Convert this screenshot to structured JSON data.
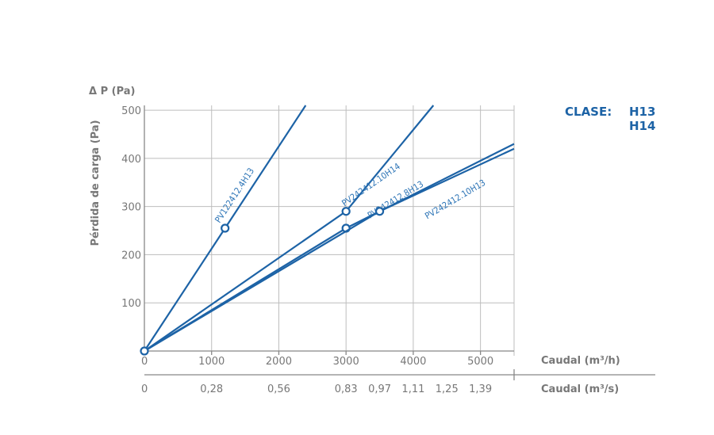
{
  "chart_data": {
    "type": "line",
    "ylabel_symbol": "Δ P (Pa)",
    "ylabel": "Pérdida de carga (Pa)",
    "xlabel_primary": "Caudal (m³/h)",
    "xlabel_secondary": "Caudal (m³/s)",
    "xlim": [
      0,
      5500
    ],
    "ylim": [
      0,
      510
    ],
    "x_ticks_primary": [
      "0",
      "1000",
      "2000",
      "3000",
      "4000",
      "5000"
    ],
    "y_ticks": [
      "100",
      "200",
      "300",
      "400",
      "500"
    ],
    "x_ticks_secondary": [
      {
        "value": 0,
        "label": "0"
      },
      {
        "value": 1000,
        "label": "0,28"
      },
      {
        "value": 2000,
        "label": "0,56"
      },
      {
        "value": 3000,
        "label": "0,83"
      },
      {
        "value": 3500,
        "label": "0,97"
      },
      {
        "value": 4000,
        "label": "1,11"
      },
      {
        "value": 4500,
        "label": "1,25"
      },
      {
        "value": 5000,
        "label": "1,39"
      }
    ],
    "grid": true,
    "legend": {
      "title": "CLASE:",
      "items": [
        "H13",
        "H14"
      ]
    },
    "series": [
      {
        "name": "PV122412.4H13",
        "x": [
          0,
          1200,
          2400
        ],
        "y": [
          0,
          255,
          510
        ],
        "marker": {
          "x": 1200,
          "y": 255
        }
      },
      {
        "name": "PV242412.10H14",
        "x": [
          0,
          3000,
          4300
        ],
        "y": [
          0,
          290,
          510
        ],
        "marker": {
          "x": 3000,
          "y": 290
        }
      },
      {
        "name": "PV242412.8H13",
        "x": [
          0,
          3000,
          5500
        ],
        "y": [
          0,
          255,
          430
        ],
        "marker": {
          "x": 3000,
          "y": 255
        }
      },
      {
        "name": "PV242412.10H13",
        "x": [
          0,
          3500,
          5500
        ],
        "y": [
          0,
          290,
          420
        ],
        "marker": {
          "x": 3500,
          "y": 290
        }
      }
    ],
    "colors": {
      "series": "#1d63a6",
      "label": "#2c74b6",
      "legend_title": "#1d63a6",
      "axis": "#888888",
      "grid": "#bdbdbd"
    }
  }
}
